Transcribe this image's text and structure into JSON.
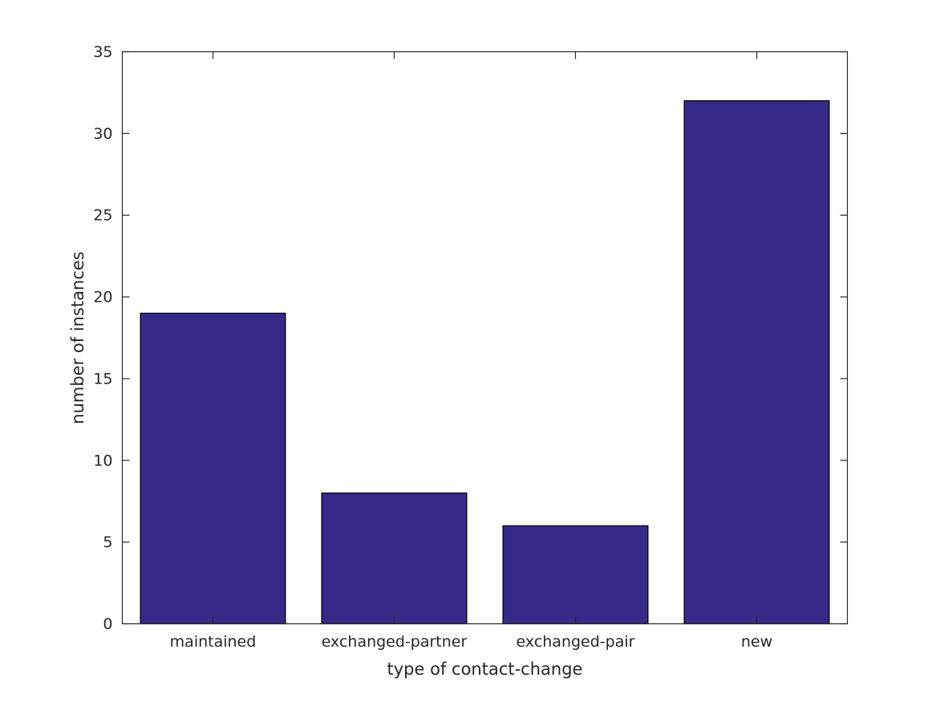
{
  "chart_data": {
    "type": "bar",
    "categories": [
      "maintained",
      "exchanged-partner",
      "exchanged-pair",
      "new"
    ],
    "values": [
      19,
      8,
      6,
      32
    ],
    "title": "",
    "xlabel": "type of contact-change",
    "ylabel": "number of instances",
    "ylim": [
      0,
      35
    ],
    "yticks": [
      0,
      5,
      10,
      15,
      20,
      25,
      30,
      35
    ],
    "bar_width_fraction": 0.8,
    "grid": false,
    "legend": null,
    "colors": {
      "bar_fill": "#352A87",
      "bar_edge": "#000000",
      "axis_line": "#262626",
      "text": "#262626",
      "background": "#FFFFFF"
    }
  }
}
